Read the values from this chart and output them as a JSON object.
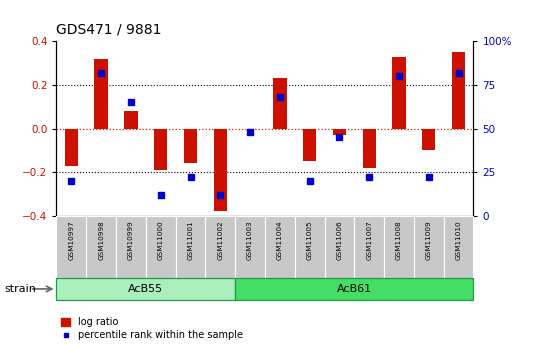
{
  "title": "GDS471 / 9881",
  "samples": [
    "GSM10997",
    "GSM10998",
    "GSM10999",
    "GSM11000",
    "GSM11001",
    "GSM11002",
    "GSM11003",
    "GSM11004",
    "GSM11005",
    "GSM11006",
    "GSM11007",
    "GSM11008",
    "GSM11009",
    "GSM11010"
  ],
  "log_ratio": [
    -0.17,
    0.32,
    0.08,
    -0.19,
    -0.16,
    -0.38,
    0.0,
    0.23,
    -0.15,
    -0.03,
    -0.18,
    0.33,
    -0.1,
    0.35
  ],
  "percentile_rank": [
    20,
    82,
    65,
    12,
    22,
    12,
    48,
    68,
    20,
    45,
    22,
    80,
    22,
    82
  ],
  "groups": [
    {
      "label": "AcB55",
      "start": 0,
      "end": 6,
      "color": "#AAEEBB"
    },
    {
      "label": "AcB61",
      "start": 6,
      "end": 14,
      "color": "#44DD66"
    }
  ],
  "group_label": "strain",
  "bar_color": "#CC1100",
  "dot_color": "#0000CC",
  "ylim_left": [
    -0.4,
    0.4
  ],
  "ylim_right": [
    0,
    100
  ],
  "yticks_left": [
    -0.4,
    -0.2,
    0.0,
    0.2,
    0.4
  ],
  "yticks_right": [
    0,
    25,
    50,
    75,
    100
  ],
  "ytick_labels_right": [
    "0",
    "25",
    "50",
    "75",
    "100%"
  ],
  "hline_color": "#DD2200",
  "dotted_color": "black",
  "legend_log_ratio": "log ratio",
  "legend_percentile": "percentile rank within the sample",
  "bar_width": 0.45,
  "dot_size": 4.0,
  "tick_fontsize": 7.5,
  "sample_fontsize": 5.2,
  "group_fontsize": 8,
  "title_fontsize": 10,
  "legend_fontsize": 7
}
